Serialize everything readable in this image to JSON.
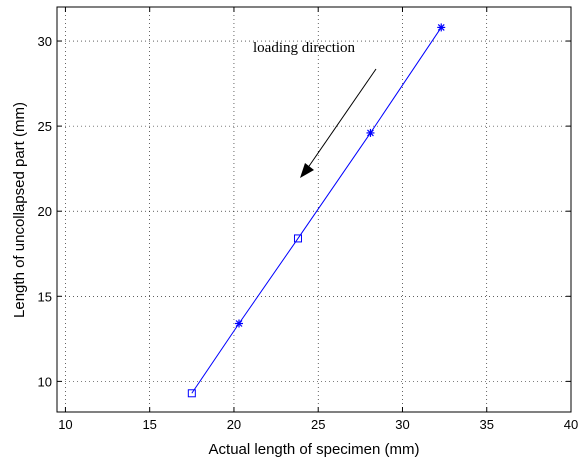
{
  "chart_data": {
    "type": "line",
    "title": "",
    "xlabel": "Actual length of specimen (mm)",
    "ylabel": "Length of uncollapsed part (mm)",
    "xlim": [
      9.5,
      40
    ],
    "ylim": [
      8.2,
      32
    ],
    "xticks": [
      10,
      15,
      20,
      25,
      30,
      35,
      40
    ],
    "yticks": [
      10,
      15,
      20,
      25,
      30
    ],
    "grid": true,
    "series": [
      {
        "color": "#0000ff",
        "points": [
          {
            "x": 17.5,
            "y": 9.3,
            "marker": "square"
          },
          {
            "x": 20.3,
            "y": 13.4,
            "marker": "star"
          },
          {
            "x": 23.8,
            "y": 18.4,
            "marker": "square"
          },
          {
            "x": 28.1,
            "y": 24.6,
            "marker": "star"
          },
          {
            "x": 32.3,
            "y": 30.8,
            "marker": "star"
          }
        ]
      }
    ],
    "annotation": {
      "text": "loading direction",
      "arrow_color": "#000000"
    }
  }
}
